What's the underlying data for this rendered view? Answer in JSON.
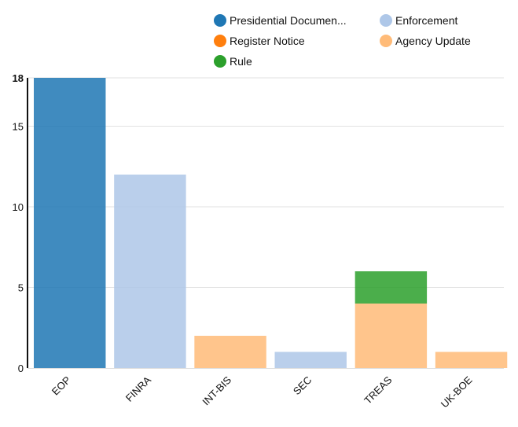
{
  "chart_data": {
    "type": "bar",
    "stacked": true,
    "categories": [
      "EOP",
      "FINRA",
      "INT-BIS",
      "SEC",
      "TREAS",
      "UK-BOE"
    ],
    "series": [
      {
        "name": "Presidential Documen...",
        "color": "#1f77b4",
        "values": [
          18,
          0,
          0,
          0,
          0,
          0
        ]
      },
      {
        "name": "Enforcement",
        "color": "#aec7e8",
        "values": [
          0,
          12,
          0,
          1,
          0,
          0
        ]
      },
      {
        "name": "Register Notice",
        "color": "#ff7f0e",
        "values": [
          0,
          0,
          0,
          0,
          0,
          0
        ]
      },
      {
        "name": "Agency Update",
        "color": "#ffbb78",
        "values": [
          0,
          0,
          2,
          0,
          4,
          1
        ]
      },
      {
        "name": "Rule",
        "color": "#2ca02c",
        "values": [
          0,
          0,
          0,
          0,
          2,
          0
        ]
      }
    ],
    "yticks": [
      "0",
      "5",
      "10",
      "15",
      "18"
    ],
    "ylim": [
      0,
      18
    ],
    "grid": true,
    "legend_position": "top-right",
    "x_tick_rotation": "-45deg"
  }
}
